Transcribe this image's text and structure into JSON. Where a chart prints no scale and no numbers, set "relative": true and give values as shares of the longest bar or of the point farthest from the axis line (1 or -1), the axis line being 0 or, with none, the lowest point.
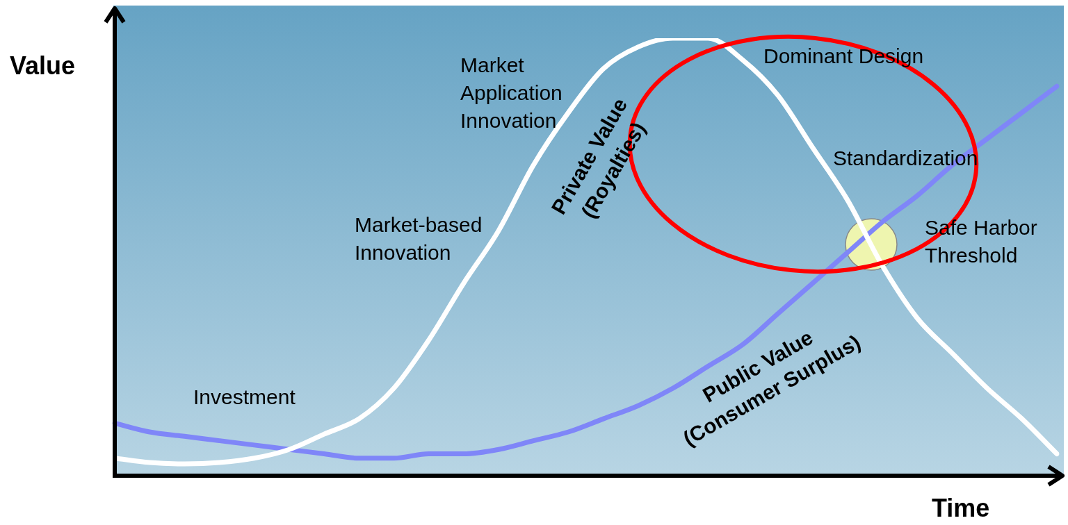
{
  "chart_data": {
    "type": "line",
    "relative": true,
    "xlabel": "Time",
    "ylabel": "Value",
    "legend": false,
    "categories": [
      null,
      null,
      null,
      null,
      null,
      null,
      null,
      null,
      null,
      null,
      null,
      null,
      null,
      null,
      null,
      null,
      null,
      null,
      null,
      null,
      null,
      null,
      null,
      null,
      null,
      null,
      null,
      null
    ],
    "series": [
      {
        "name": "Private Value (Royalties)",
        "color": "#ffffff",
        "values": [
          0.04,
          0.03,
          0.027,
          0.03,
          0.04,
          0.06,
          0.095,
          0.13,
          0.2,
          0.31,
          0.44,
          0.56,
          0.71,
          0.83,
          0.93,
          0.98,
          1.0,
          1.0,
          0.95,
          0.87,
          0.75,
          0.63,
          0.48,
          0.36,
          0.28,
          0.2,
          0.13,
          0.05
        ]
      },
      {
        "name": "Public Value (Consumer Surplus)",
        "color": "#7f86f8",
        "values": [
          0.12,
          0.1,
          0.09,
          0.08,
          0.07,
          0.06,
          0.05,
          0.04,
          0.04,
          0.05,
          0.05,
          0.06,
          0.08,
          0.1,
          0.13,
          0.16,
          0.2,
          0.25,
          0.3,
          0.37,
          0.44,
          0.51,
          0.58,
          0.64,
          0.71,
          0.77,
          0.83,
          0.89
        ]
      }
    ],
    "annotations": [
      "Investment",
      "Market-based Innovation",
      "Market Application Innovation",
      "Dominant Design",
      "Standardization",
      "Safe Harbor Threshold"
    ]
  }
}
